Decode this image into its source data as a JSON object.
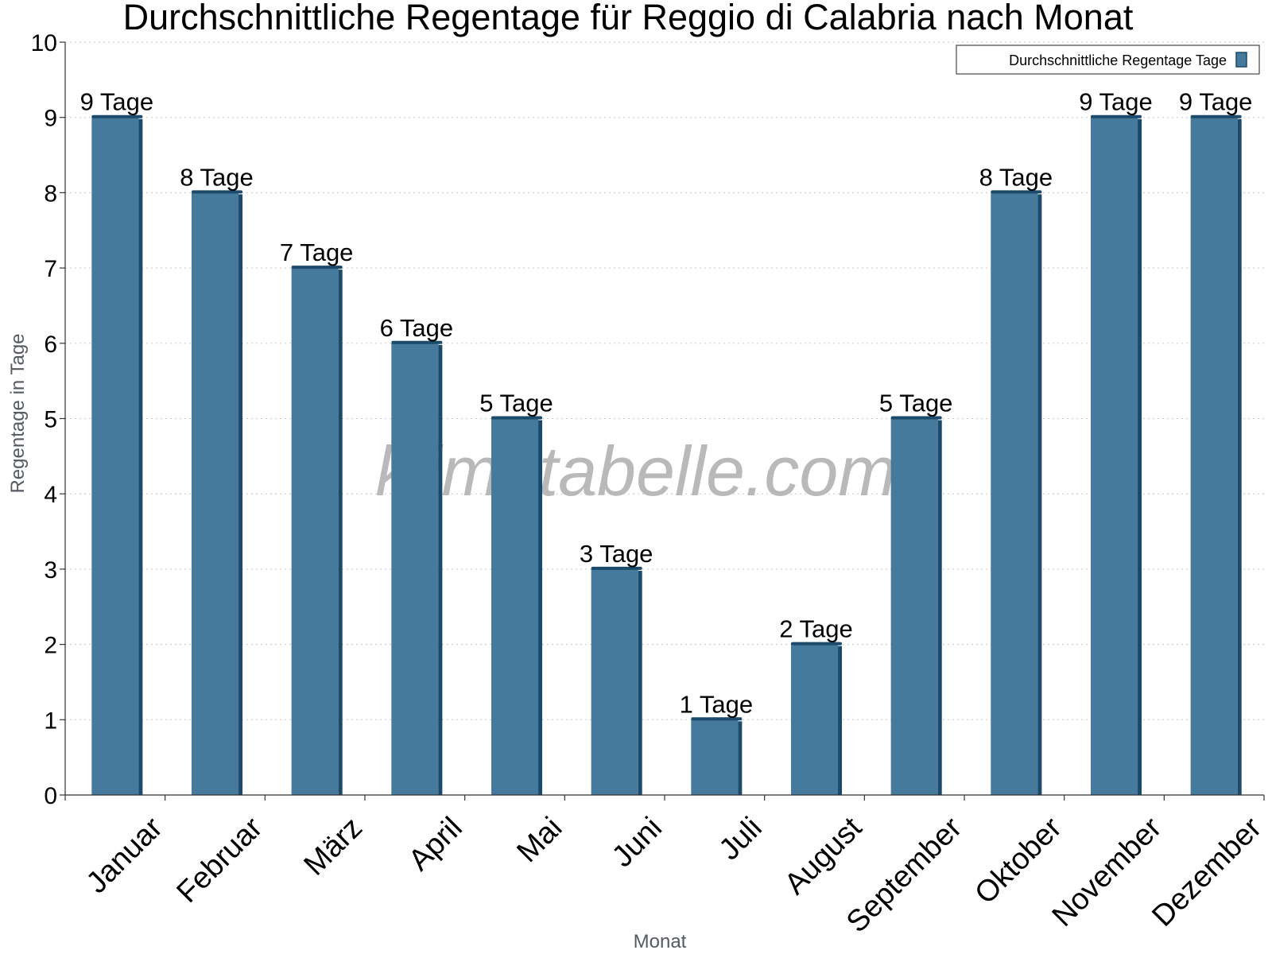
{
  "chart_data": {
    "type": "bar",
    "title": "Durchschnittliche Regentage für Reggio di Calabria nach Monat",
    "xlabel": "Monat",
    "ylabel": "Regentage in Tage",
    "ylim": [
      0,
      10
    ],
    "yticks": [
      "0",
      "1",
      "2",
      "3",
      "4",
      "5",
      "6",
      "7",
      "8",
      "9",
      "10"
    ],
    "grid": true,
    "legend_position": "top-right",
    "categories": [
      "Januar",
      "Februar",
      "März",
      "April",
      "Mai",
      "Juni",
      "Juli",
      "August",
      "September",
      "Oktober",
      "November",
      "Dezember"
    ],
    "series": [
      {
        "name": "Durchschnittliche Regentage Tage",
        "values": [
          9,
          8,
          7,
          6,
          5,
          3,
          1,
          2,
          5,
          8,
          9,
          9
        ],
        "data_labels": [
          "9 Tage",
          "8 Tage",
          "7 Tage",
          "6 Tage",
          "5 Tage",
          "3 Tage",
          "1 Tage",
          "2 Tage",
          "5 Tage",
          "8 Tage",
          "9 Tage",
          "9 Tage"
        ],
        "color": "#467a9c",
        "edge_color": "#1c4a6b"
      }
    ]
  },
  "watermark": "klimatabelle.com"
}
